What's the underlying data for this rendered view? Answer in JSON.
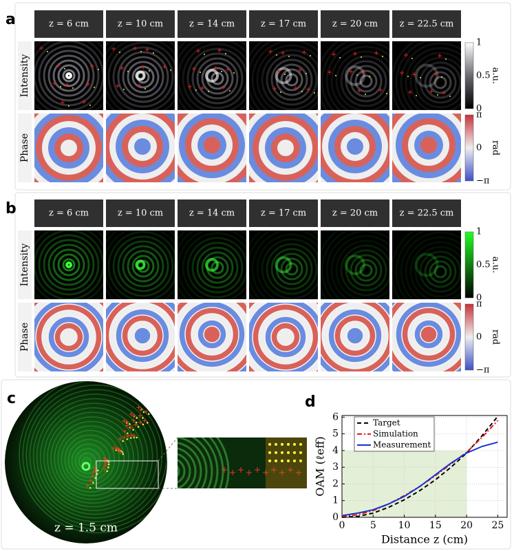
{
  "panel_a": {
    "label": "a",
    "columns": [
      "z = 6 cm",
      "z = 10 cm",
      "z = 14 cm",
      "z = 17 cm",
      "z = 20 cm",
      "z = 22.5 cm"
    ],
    "rows": [
      "Intensity",
      "Phase"
    ],
    "intensity_colorbar": {
      "ticks": [
        "1",
        "0.5",
        "0"
      ],
      "unit": "a.u."
    },
    "phase_colorbar": {
      "ticks": [
        "π",
        "0",
        "−π"
      ],
      "unit": "rad"
    }
  },
  "panel_b": {
    "label": "b",
    "columns": [
      "z = 6 cm",
      "z = 10 cm",
      "z = 14 cm",
      "z = 17 cm",
      "z = 20 cm",
      "z = 22.5 cm"
    ],
    "rows": [
      "Intensity",
      "Phase"
    ],
    "intensity_colorbar": {
      "ticks": [
        "1",
        "0.5",
        "0"
      ],
      "unit": "a.u."
    },
    "phase_colorbar": {
      "ticks": [
        "π",
        "0",
        "−π"
      ],
      "unit": "rad"
    }
  },
  "panel_c": {
    "label": "c",
    "annotation": "z = 1.5 cm"
  },
  "panel_d": {
    "label": "d"
  },
  "chart_data": {
    "type": "line",
    "x_label": "Distance z (cm)",
    "y_label": "OAM (ℓeff)",
    "x": [
      0,
      2.5,
      5,
      7.5,
      10,
      12.5,
      15,
      17.5,
      20,
      22.5,
      25
    ],
    "series": [
      {
        "name": "Target",
        "color": "#000000",
        "dash": "6,4",
        "values": [
          0,
          0.05,
          0.25,
          0.6,
          1.05,
          1.6,
          2.25,
          3.0,
          3.85,
          4.9,
          6.05
        ]
      },
      {
        "name": "Simulation",
        "color": "#e8141c",
        "dash": "7,3,2,3",
        "values": [
          0.05,
          0.15,
          0.4,
          0.8,
          1.3,
          1.85,
          2.5,
          3.2,
          3.9,
          4.8,
          5.8
        ]
      },
      {
        "name": "Measurement",
        "color": "#1530d0",
        "dash": "",
        "values": [
          0.1,
          0.25,
          0.45,
          0.8,
          1.25,
          1.85,
          2.55,
          3.25,
          3.85,
          4.25,
          4.5
        ]
      }
    ],
    "xlim": [
      0,
      26.5
    ],
    "ylim": [
      0,
      6.1
    ],
    "xticks": [
      0,
      5,
      10,
      15,
      20,
      25
    ],
    "yticks": [
      0,
      1,
      2,
      3,
      4,
      5,
      6
    ],
    "highlight": {
      "xlim": [
        0,
        20
      ],
      "ylim": [
        0,
        4
      ],
      "color": "#e3efd6"
    },
    "grid": true,
    "legend": "upper left"
  }
}
